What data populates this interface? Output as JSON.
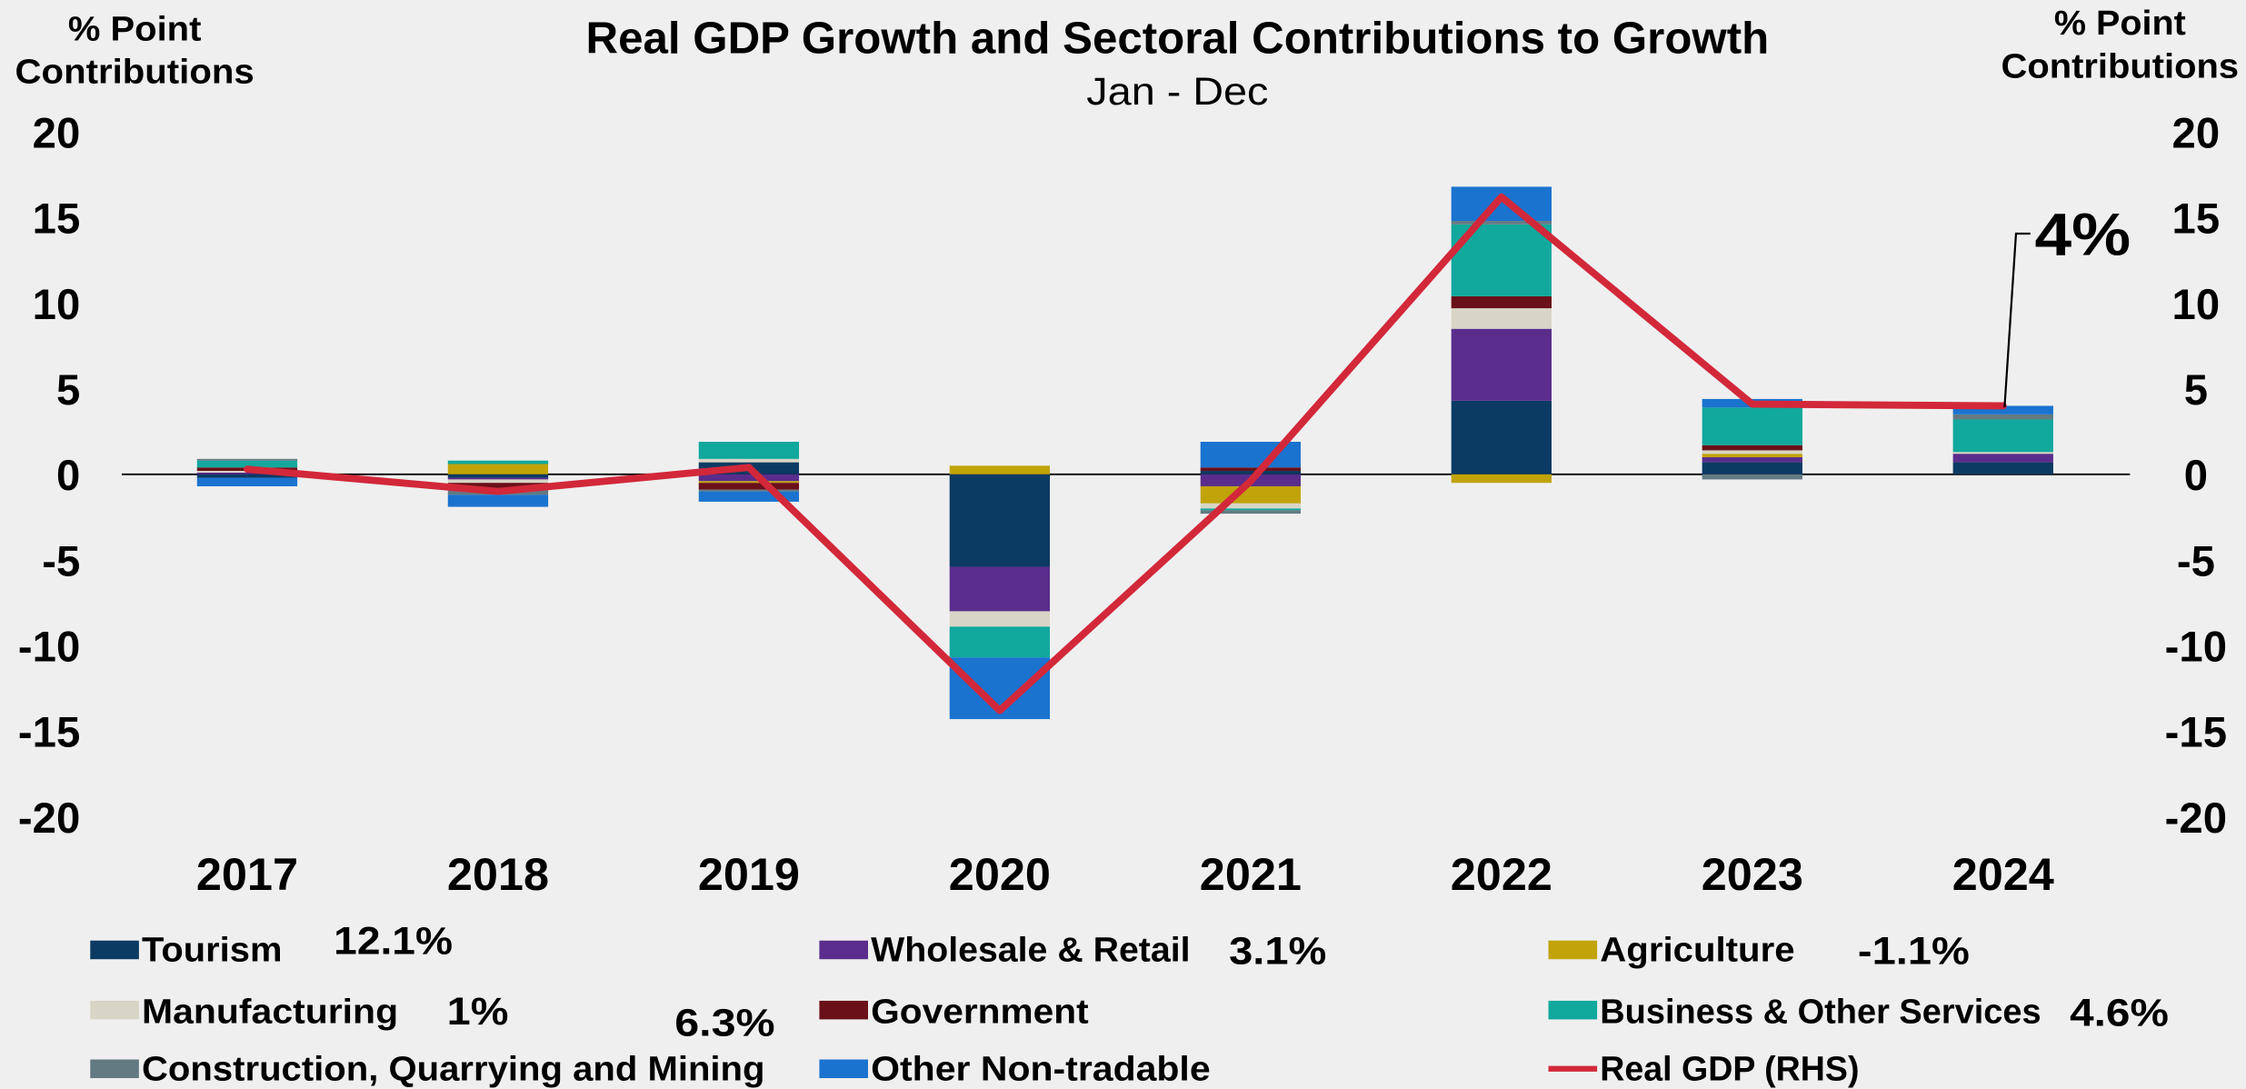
{
  "chart_data": {
    "type": "bar",
    "stacked": true,
    "title": "Real GDP Growth and Sectoral Contributions to Growth",
    "subtitle": "Jan - Dec",
    "ylabel_left": [
      "% Point",
      "Contributions"
    ],
    "ylabel_right": [
      "% Point",
      "Contributions"
    ],
    "ylim": [
      -20,
      20
    ],
    "y2lim": [
      -20,
      20
    ],
    "yticks": [
      20,
      15,
      10,
      5,
      0,
      -5,
      -10,
      -15,
      -20
    ],
    "categories": [
      "2017",
      "2018",
      "2019",
      "2020",
      "2021",
      "2022",
      "2023",
      "2024"
    ],
    "series": [
      {
        "name": "Tourism",
        "color": "#0b3a63",
        "growth_label": "12.1%",
        "values": [
          -0.2,
          -0.2,
          0.7,
          -5.4,
          0.2,
          4.3,
          0.7,
          0.7
        ]
      },
      {
        "name": "Wholesale & Retail",
        "color": "#5a2d8c",
        "growth_label": "3.1%",
        "values": [
          0.1,
          -0.1,
          -0.4,
          -2.6,
          -0.7,
          4.2,
          0.3,
          0.5
        ]
      },
      {
        "name": "Agriculture",
        "color": "#c1a30a",
        "growth_label": "-1.1%",
        "values": [
          0.0,
          0.6,
          -0.1,
          0.5,
          -1.0,
          -0.5,
          0.2,
          0.0
        ]
      },
      {
        "name": "Manufacturing",
        "color": "#d8d5c6",
        "growth_label": "1%",
        "values": [
          0.1,
          -0.2,
          0.2,
          -0.9,
          -0.3,
          1.2,
          0.2,
          0.1
        ]
      },
      {
        "name": "Government",
        "color": "#6a1019",
        "values": [
          0.2,
          -0.3,
          -0.4,
          0.0,
          0.2,
          0.7,
          0.3,
          0.0
        ]
      },
      {
        "name": "Business & Other Services",
        "color": "#11a89d",
        "growth_label": "4.6%",
        "values": [
          0.4,
          0.2,
          1.0,
          -1.8,
          -0.1,
          4.2,
          2.2,
          1.9
        ]
      },
      {
        "name": "Construction, Quarrying and Mining",
        "color": "#647a83",
        "growth_label": "6.3%",
        "values": [
          0.1,
          -0.4,
          -0.1,
          0.0,
          -0.2,
          0.2,
          -0.3,
          0.3
        ]
      },
      {
        "name": "Other Non-tradable",
        "color": "#1a73cf",
        "values": [
          -0.5,
          -0.7,
          -0.6,
          -3.6,
          1.5,
          2.0,
          0.5,
          0.5
        ]
      }
    ],
    "line": {
      "name": "Real GDP (RHS)",
      "color": "#d2283a",
      "axis": "right",
      "values": [
        0.3,
        -1.0,
        0.4,
        -13.8,
        -0.4,
        16.2,
        4.1,
        4.0
      ]
    },
    "callout": {
      "label": "4%",
      "category": "2024"
    },
    "annotation_color": "#ee1d23",
    "legend_position": "bottom",
    "grid": false
  }
}
